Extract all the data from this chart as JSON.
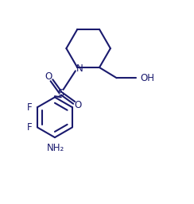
{
  "bg_color": "#ffffff",
  "line_color": "#1a1a6e",
  "line_width": 1.5,
  "font_size": 8.5,
  "figsize": [
    2.44,
    2.57
  ],
  "dpi": 100,
  "xlim": [
    0.0,
    10.0
  ],
  "ylim": [
    0.0,
    10.0
  ]
}
